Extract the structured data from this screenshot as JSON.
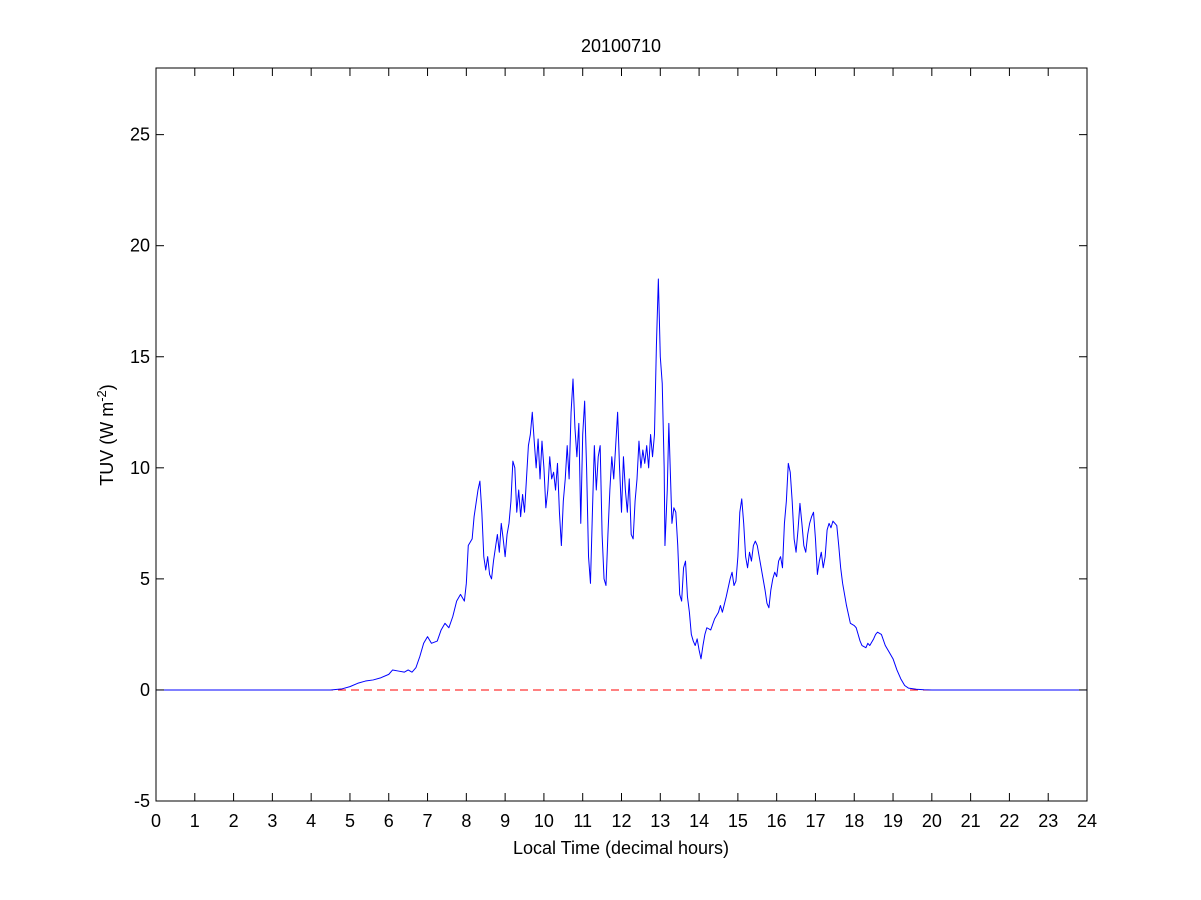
{
  "chart_data": {
    "type": "line",
    "title": "20100710",
    "xlabel": "Local Time (decimal hours)",
    "ylabel_main": "TUV (W m",
    "ylabel_sup": "-2",
    "ylabel_close": ")",
    "xlim": [
      0,
      24
    ],
    "ylim": [
      -5,
      28
    ],
    "xticks": [
      "0",
      "1",
      "2",
      "3",
      "4",
      "5",
      "6",
      "7",
      "8",
      "9",
      "10",
      "11",
      "12",
      "13",
      "14",
      "15",
      "16",
      "17",
      "18",
      "19",
      "20",
      "21",
      "22",
      "23",
      "24"
    ],
    "yticks": [
      "-5",
      "0",
      "5",
      "10",
      "15",
      "20",
      "25"
    ],
    "grid": false,
    "colors": {
      "series": "#0000ff",
      "reference": "#ff0000",
      "axes": "#000000"
    },
    "series": [
      {
        "style": "solid",
        "color": "#0000ff",
        "points": [
          [
            0,
            0
          ],
          [
            4.5,
            0
          ],
          [
            4.8,
            0.05
          ],
          [
            5.0,
            0.15
          ],
          [
            5.2,
            0.3
          ],
          [
            5.4,
            0.4
          ],
          [
            5.6,
            0.45
          ],
          [
            5.8,
            0.55
          ],
          [
            6.0,
            0.7
          ],
          [
            6.1,
            0.9
          ],
          [
            6.25,
            0.85
          ],
          [
            6.4,
            0.8
          ],
          [
            6.5,
            0.9
          ],
          [
            6.6,
            0.8
          ],
          [
            6.7,
            1.0
          ],
          [
            6.8,
            1.5
          ],
          [
            6.9,
            2.1
          ],
          [
            7.0,
            2.4
          ],
          [
            7.1,
            2.1
          ],
          [
            7.25,
            2.2
          ],
          [
            7.35,
            2.7
          ],
          [
            7.45,
            3.0
          ],
          [
            7.55,
            2.8
          ],
          [
            7.65,
            3.3
          ],
          [
            7.75,
            4.0
          ],
          [
            7.85,
            4.3
          ],
          [
            7.95,
            4.0
          ],
          [
            8.0,
            4.8
          ],
          [
            8.05,
            6.5
          ],
          [
            8.15,
            6.8
          ],
          [
            8.2,
            7.8
          ],
          [
            8.3,
            9.0
          ],
          [
            8.35,
            9.4
          ],
          [
            8.4,
            8.0
          ],
          [
            8.45,
            6.0
          ],
          [
            8.5,
            5.4
          ],
          [
            8.55,
            6.0
          ],
          [
            8.6,
            5.2
          ],
          [
            8.65,
            5.0
          ],
          [
            8.7,
            5.8
          ],
          [
            8.8,
            7.0
          ],
          [
            8.85,
            6.2
          ],
          [
            8.9,
            7.5
          ],
          [
            8.95,
            6.8
          ],
          [
            9.0,
            6.0
          ],
          [
            9.05,
            7.0
          ],
          [
            9.1,
            7.5
          ],
          [
            9.15,
            8.5
          ],
          [
            9.2,
            10.3
          ],
          [
            9.25,
            10.0
          ],
          [
            9.3,
            8.0
          ],
          [
            9.35,
            9.0
          ],
          [
            9.4,
            7.8
          ],
          [
            9.45,
            8.8
          ],
          [
            9.5,
            8.0
          ],
          [
            9.55,
            9.5
          ],
          [
            9.6,
            11.0
          ],
          [
            9.65,
            11.5
          ],
          [
            9.7,
            12.5
          ],
          [
            9.75,
            11.2
          ],
          [
            9.8,
            10.0
          ],
          [
            9.85,
            11.3
          ],
          [
            9.9,
            9.5
          ],
          [
            9.95,
            11.2
          ],
          [
            10.0,
            10.0
          ],
          [
            10.05,
            8.2
          ],
          [
            10.1,
            9.0
          ],
          [
            10.15,
            10.5
          ],
          [
            10.2,
            9.5
          ],
          [
            10.25,
            9.8
          ],
          [
            10.3,
            9.0
          ],
          [
            10.35,
            10.2
          ],
          [
            10.4,
            8.0
          ],
          [
            10.45,
            6.5
          ],
          [
            10.5,
            8.5
          ],
          [
            10.55,
            9.5
          ],
          [
            10.6,
            11.0
          ],
          [
            10.65,
            9.5
          ],
          [
            10.7,
            12.5
          ],
          [
            10.75,
            14.0
          ],
          [
            10.8,
            11.8
          ],
          [
            10.85,
            10.5
          ],
          [
            10.9,
            12.0
          ],
          [
            10.95,
            7.5
          ],
          [
            11.0,
            11.5
          ],
          [
            11.05,
            13.0
          ],
          [
            11.1,
            10.0
          ],
          [
            11.15,
            6.0
          ],
          [
            11.2,
            4.8
          ],
          [
            11.25,
            8.0
          ],
          [
            11.3,
            11.0
          ],
          [
            11.35,
            9.0
          ],
          [
            11.4,
            10.5
          ],
          [
            11.45,
            11.0
          ],
          [
            11.5,
            7.0
          ],
          [
            11.55,
            5.0
          ],
          [
            11.6,
            4.7
          ],
          [
            11.65,
            7.0
          ],
          [
            11.7,
            9.0
          ],
          [
            11.75,
            10.5
          ],
          [
            11.8,
            9.5
          ],
          [
            11.85,
            11.0
          ],
          [
            11.9,
            12.5
          ],
          [
            11.95,
            10.0
          ],
          [
            12.0,
            8.0
          ],
          [
            12.05,
            10.5
          ],
          [
            12.1,
            9.0
          ],
          [
            12.15,
            8.0
          ],
          [
            12.2,
            9.5
          ],
          [
            12.25,
            7.0
          ],
          [
            12.3,
            6.8
          ],
          [
            12.35,
            8.5
          ],
          [
            12.4,
            9.5
          ],
          [
            12.45,
            11.2
          ],
          [
            12.5,
            10.0
          ],
          [
            12.55,
            10.8
          ],
          [
            12.6,
            10.2
          ],
          [
            12.65,
            11.0
          ],
          [
            12.7,
            10.0
          ],
          [
            12.75,
            11.5
          ],
          [
            12.8,
            10.5
          ],
          [
            12.85,
            11.5
          ],
          [
            12.9,
            15.5
          ],
          [
            12.95,
            18.5
          ],
          [
            13.0,
            15.0
          ],
          [
            13.05,
            13.8
          ],
          [
            13.1,
            10.0
          ],
          [
            13.12,
            6.5
          ],
          [
            13.18,
            9.0
          ],
          [
            13.22,
            12.0
          ],
          [
            13.3,
            7.5
          ],
          [
            13.35,
            8.2
          ],
          [
            13.4,
            8.0
          ],
          [
            13.45,
            6.5
          ],
          [
            13.5,
            4.3
          ],
          [
            13.55,
            4.0
          ],
          [
            13.6,
            5.5
          ],
          [
            13.65,
            5.8
          ],
          [
            13.7,
            4.2
          ],
          [
            13.75,
            3.5
          ],
          [
            13.8,
            2.5
          ],
          [
            13.85,
            2.2
          ],
          [
            13.9,
            2.0
          ],
          [
            13.95,
            2.3
          ],
          [
            14.0,
            1.8
          ],
          [
            14.05,
            1.4
          ],
          [
            14.1,
            2.0
          ],
          [
            14.15,
            2.5
          ],
          [
            14.2,
            2.8
          ],
          [
            14.3,
            2.7
          ],
          [
            14.4,
            3.2
          ],
          [
            14.5,
            3.5
          ],
          [
            14.55,
            3.8
          ],
          [
            14.6,
            3.5
          ],
          [
            14.7,
            4.2
          ],
          [
            14.8,
            5.0
          ],
          [
            14.85,
            5.3
          ],
          [
            14.9,
            4.7
          ],
          [
            14.95,
            4.9
          ],
          [
            15.0,
            6.0
          ],
          [
            15.05,
            8.0
          ],
          [
            15.1,
            8.6
          ],
          [
            15.15,
            7.5
          ],
          [
            15.2,
            6.0
          ],
          [
            15.25,
            5.5
          ],
          [
            15.3,
            6.2
          ],
          [
            15.35,
            5.8
          ],
          [
            15.4,
            6.5
          ],
          [
            15.45,
            6.7
          ],
          [
            15.5,
            6.5
          ],
          [
            15.55,
            6.0
          ],
          [
            15.6,
            5.5
          ],
          [
            15.65,
            5.0
          ],
          [
            15.7,
            4.5
          ],
          [
            15.75,
            3.9
          ],
          [
            15.8,
            3.7
          ],
          [
            15.85,
            4.5
          ],
          [
            15.9,
            5.0
          ],
          [
            15.95,
            5.3
          ],
          [
            16.0,
            5.1
          ],
          [
            16.05,
            5.8
          ],
          [
            16.1,
            6.0
          ],
          [
            16.15,
            5.5
          ],
          [
            16.2,
            7.5
          ],
          [
            16.25,
            8.5
          ],
          [
            16.3,
            10.2
          ],
          [
            16.35,
            9.8
          ],
          [
            16.4,
            8.5
          ],
          [
            16.45,
            6.8
          ],
          [
            16.5,
            6.2
          ],
          [
            16.55,
            7.2
          ],
          [
            16.6,
            8.4
          ],
          [
            16.65,
            7.5
          ],
          [
            16.7,
            6.5
          ],
          [
            16.75,
            6.2
          ],
          [
            16.8,
            7.0
          ],
          [
            16.85,
            7.5
          ],
          [
            16.9,
            7.8
          ],
          [
            16.95,
            8.0
          ],
          [
            17.0,
            6.8
          ],
          [
            17.05,
            5.2
          ],
          [
            17.1,
            5.8
          ],
          [
            17.15,
            6.2
          ],
          [
            17.2,
            5.5
          ],
          [
            17.25,
            6.0
          ],
          [
            17.3,
            7.2
          ],
          [
            17.35,
            7.5
          ],
          [
            17.4,
            7.3
          ],
          [
            17.45,
            7.6
          ],
          [
            17.5,
            7.5
          ],
          [
            17.55,
            7.4
          ],
          [
            17.6,
            6.5
          ],
          [
            17.65,
            5.5
          ],
          [
            17.7,
            4.8
          ],
          [
            17.8,
            3.8
          ],
          [
            17.9,
            3.0
          ],
          [
            18.0,
            2.9
          ],
          [
            18.05,
            2.8
          ],
          [
            18.1,
            2.5
          ],
          [
            18.15,
            2.2
          ],
          [
            18.2,
            2.0
          ],
          [
            18.3,
            1.9
          ],
          [
            18.35,
            2.1
          ],
          [
            18.4,
            2.0
          ],
          [
            18.5,
            2.3
          ],
          [
            18.55,
            2.5
          ],
          [
            18.6,
            2.6
          ],
          [
            18.7,
            2.5
          ],
          [
            18.8,
            2.0
          ],
          [
            18.9,
            1.7
          ],
          [
            19.0,
            1.4
          ],
          [
            19.1,
            0.9
          ],
          [
            19.2,
            0.5
          ],
          [
            19.3,
            0.2
          ],
          [
            19.4,
            0.08
          ],
          [
            19.6,
            0.03
          ],
          [
            19.8,
            0.01
          ],
          [
            20.0,
            0
          ],
          [
            24,
            0
          ]
        ]
      },
      {
        "style": "dashed",
        "color": "#ff0000",
        "points": [
          [
            0,
            0
          ],
          [
            24,
            0
          ]
        ]
      }
    ]
  }
}
